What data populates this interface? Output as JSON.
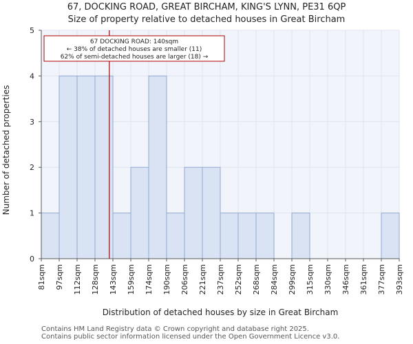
{
  "title_line1": "67, DOCKING ROAD, GREAT BIRCHAM, KING'S LYNN, PE31 6QP",
  "title_line2": "Size of property relative to detached houses in Great Bircham",
  "footer_line1": "Contains HM Land Registry data © Crown copyright and database right 2025.",
  "footer_line2": "Contains public sector information licensed under the Open Government Licence v3.0.",
  "chart_data": {
    "type": "bar",
    "xlabel": "Distribution of detached houses by size in Great Bircham",
    "ylabel": "Number of detached properties",
    "x_tick_labels": [
      "81sqm",
      "97sqm",
      "112sqm",
      "128sqm",
      "143sqm",
      "159sqm",
      "174sqm",
      "190sqm",
      "206sqm",
      "221sqm",
      "237sqm",
      "252sqm",
      "268sqm",
      "284sqm",
      "299sqm",
      "315sqm",
      "330sqm",
      "346sqm",
      "361sqm",
      "377sqm",
      "393sqm"
    ],
    "bin_edges_sqm": [
      81,
      97,
      112,
      128,
      143,
      159,
      174,
      190,
      206,
      221,
      237,
      252,
      268,
      284,
      299,
      315,
      330,
      346,
      361,
      377,
      393
    ],
    "values": [
      1,
      4,
      4,
      4,
      1,
      2,
      4,
      1,
      2,
      2,
      1,
      1,
      1,
      0,
      1,
      0,
      0,
      0,
      0,
      1
    ],
    "ylim": [
      0,
      5
    ],
    "y_ticks": [
      0,
      1,
      2,
      3,
      4,
      5
    ],
    "grid": true,
    "bar_color": "#dae3f3",
    "bar_edge_color": "#8fa8d0",
    "grid_color": "#dde3ef",
    "plot_background": "#f1f4fb",
    "marker": {
      "value_sqm": 140,
      "color": "#aa0000",
      "annotation_lines": [
        "67 DOCKING ROAD: 140sqm",
        "← 38% of detached houses are smaller (11)",
        "62% of semi-detached houses are larger (18) →"
      ]
    }
  }
}
